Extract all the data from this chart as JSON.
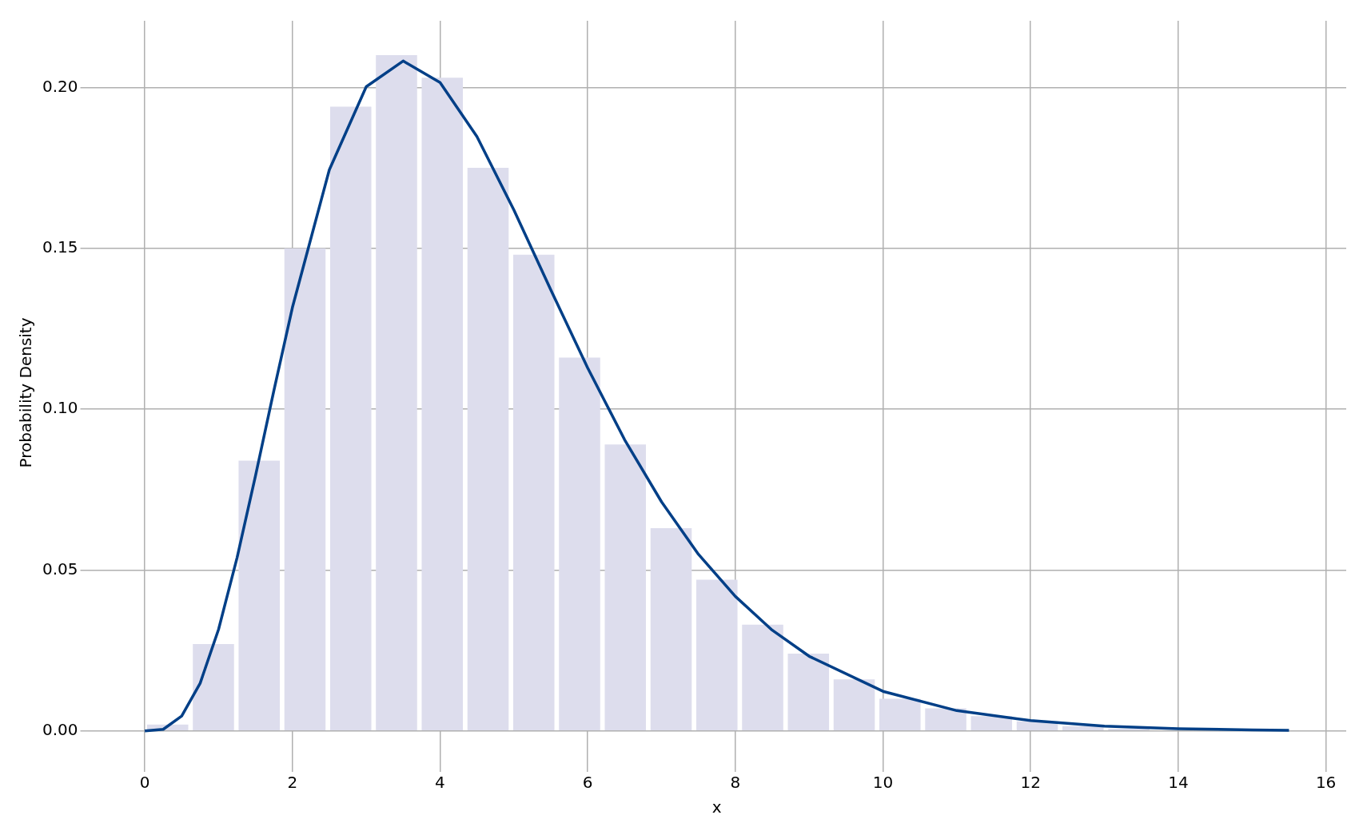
{
  "chart_data": {
    "type": "histogram",
    "xlabel": "x",
    "ylabel": "Probability Density",
    "bins": [
      0,
      0.62,
      1.24,
      1.86,
      2.48,
      3.1,
      3.72,
      4.34,
      4.96,
      5.58,
      6.2,
      6.82,
      7.44,
      8.06,
      8.68,
      9.3,
      9.92,
      10.54,
      11.16,
      11.78,
      12.4,
      13.02,
      13.64,
      14.26,
      14.88,
      15.5
    ],
    "values": [
      0.002,
      0.027,
      0.084,
      0.15,
      0.194,
      0.21,
      0.203,
      0.175,
      0.148,
      0.116,
      0.089,
      0.063,
      0.047,
      0.033,
      0.024,
      0.016,
      0.01,
      0.007,
      0.0046,
      0.003,
      0.0015,
      0.0007,
      null,
      0.0002,
      0.0002
    ],
    "color": "#dddded",
    "series": [
      {
        "type": "line",
        "color": "#003f87",
        "x": [
          0,
          0.25,
          0.5,
          0.75,
          1,
          1.25,
          1.5,
          1.75,
          2,
          2.5,
          3,
          3.5,
          4,
          4.5,
          5,
          5.5,
          6,
          6.5,
          7,
          7.5,
          8,
          8.5,
          9,
          10,
          11,
          12,
          13,
          14,
          15,
          15.5
        ],
        "values": [
          0,
          0.0005,
          0.0046,
          0.0148,
          0.0316,
          0.0538,
          0.0793,
          0.1059,
          0.1316,
          0.1744,
          0.2002,
          0.2082,
          0.2015,
          0.1847,
          0.1619,
          0.1371,
          0.1128,
          0.0905,
          0.0712,
          0.0549,
          0.0418,
          0.0313,
          0.0232,
          0.0123,
          0.0063,
          0.0032,
          0.0015,
          0.0007,
          0.0003,
          0.0002
        ]
      }
    ],
    "xlim": [
      -0.775,
      16.275
    ],
    "ylim": [
      -0.0105,
      0.2207
    ],
    "xticks": [
      0,
      2,
      4,
      6,
      8,
      10,
      12,
      14,
      16
    ],
    "yticks": [
      {
        "value": 0,
        "label": "0.00"
      },
      {
        "value": 0.05,
        "label": "0.05"
      },
      {
        "value": 0.1,
        "label": "0.10"
      },
      {
        "value": 0.15,
        "label": "0.15"
      },
      {
        "value": 0.2,
        "label": "0.20"
      }
    ],
    "grid": true,
    "legend": false,
    "marker": "none",
    "line_style": "solid"
  }
}
